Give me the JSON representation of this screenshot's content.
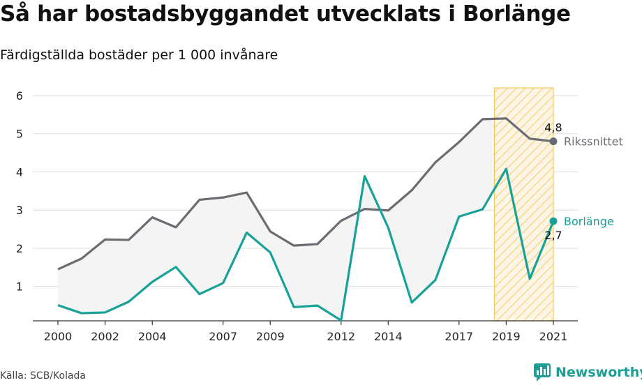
{
  "header": {
    "title": "Så har bostadsbyggandet utvecklats i Borlänge",
    "subtitle": "Färdigställda bostäder per 1 000 invånare"
  },
  "footer": {
    "source": "Källa: SCB/Kolada",
    "brand": "Newsworthy",
    "brand_icon": "bar-chart-speech-bubble-icon"
  },
  "colors": {
    "riket": "#6b6b72",
    "borlange": "#17a197",
    "highlight_stroke": "#f3c85a",
    "highlight_hatch": "#f6d27a",
    "grid": "#dddddd",
    "band": "#f4f4f4"
  },
  "chart_data": {
    "type": "line",
    "x": [
      2000,
      2001,
      2002,
      2003,
      2004,
      2005,
      2006,
      2007,
      2008,
      2009,
      2010,
      2011,
      2012,
      2013,
      2014,
      2015,
      2016,
      2017,
      2018,
      2019,
      2020,
      2021
    ],
    "x_tick_labels": [
      "2000",
      "2002",
      "2004",
      "2007",
      "2009",
      "2012",
      "2014",
      "2017",
      "2019",
      "2021"
    ],
    "y_tick_labels": [
      "1",
      "2",
      "3",
      "4",
      "5",
      "6"
    ],
    "ylim": [
      0.1,
      6.2
    ],
    "xlim": [
      2000,
      2021
    ],
    "grid": true,
    "highlight_range": [
      2018.5,
      2021
    ],
    "series": [
      {
        "name": "Rikssnittet",
        "key": "riket",
        "end_label": "4,8",
        "values": [
          1.45,
          1.73,
          2.23,
          2.22,
          2.81,
          2.55,
          3.27,
          3.33,
          3.46,
          2.44,
          2.07,
          2.11,
          2.72,
          3.03,
          2.99,
          3.52,
          4.25,
          4.78,
          5.38,
          5.4,
          4.87,
          4.8
        ]
      },
      {
        "name": "Borlänge",
        "key": "borlange",
        "end_label": "2,7",
        "values": [
          0.51,
          0.3,
          0.32,
          0.6,
          1.12,
          1.51,
          0.8,
          1.09,
          2.41,
          1.89,
          0.46,
          0.5,
          0.11,
          3.89,
          2.54,
          0.58,
          1.17,
          2.83,
          3.02,
          4.08,
          1.2,
          2.71
        ]
      }
    ]
  }
}
